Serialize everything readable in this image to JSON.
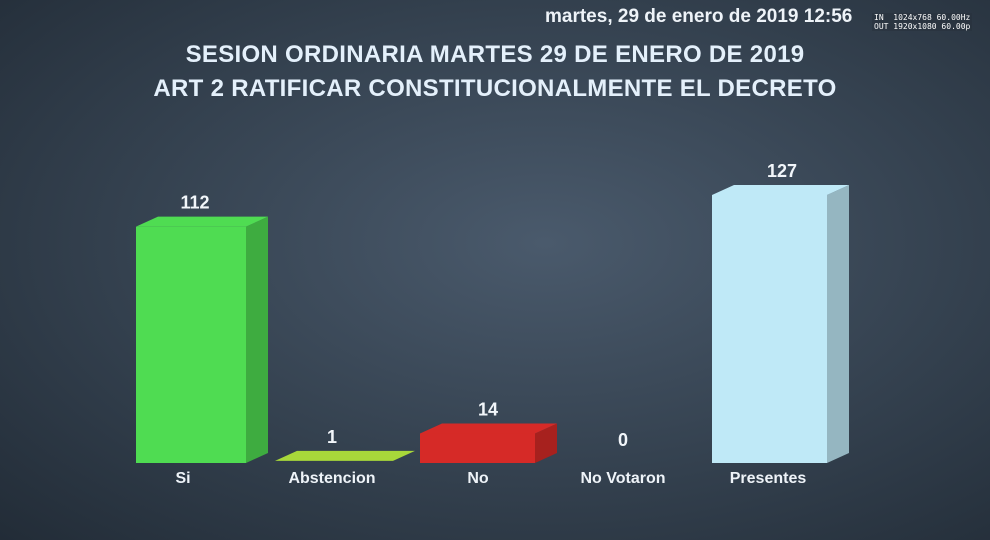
{
  "header": {
    "date_text": "martes, 29 de enero de 2019 12:56",
    "overlay_in": "IN  1024x768 60.00Hz",
    "overlay_out": "OUT 1920x1080 60.00p"
  },
  "chart_data": {
    "type": "bar",
    "title_line1": "SESION ORDINARIA MARTES 29 DE ENERO DE 2019",
    "title_line2": "ART 2 RATIFICAR CONSTITUCIONALMENTE EL DECRETO",
    "categories": [
      "Si",
      "Abstencion",
      "No",
      "No Votaron",
      "Presentes"
    ],
    "values": [
      112,
      1,
      14,
      0,
      127
    ],
    "colors": [
      "#4fdc52",
      "#a8d83a",
      "#d62a27",
      "#7a8a9a",
      "#bfe9f7"
    ],
    "ylim": [
      0,
      127
    ],
    "legend": "none",
    "grid": false
  }
}
